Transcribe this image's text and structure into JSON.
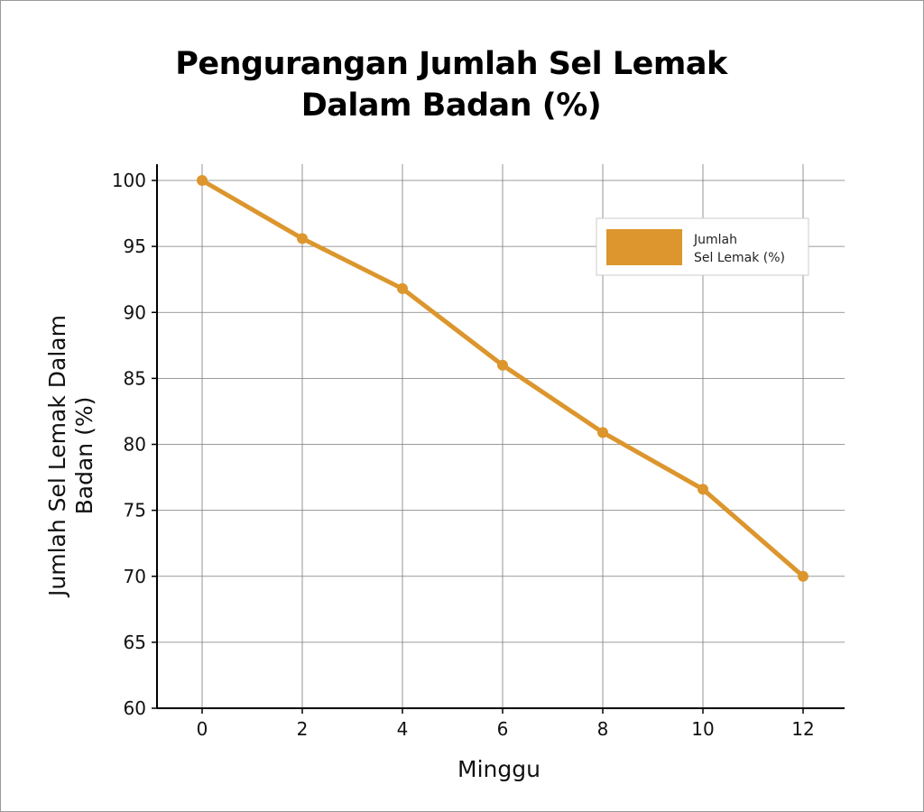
{
  "chart_data": {
    "type": "line",
    "title_lines": [
      "Pengurangan Jumlah Sel Lemak",
      "Dalam Badan (%)"
    ],
    "xlabel": "Minggu",
    "ylabel_lines": [
      "Jumlah Sel Lemak Dalam",
      "Badan (%)"
    ],
    "x": [
      0,
      2,
      4,
      6,
      8,
      10,
      12
    ],
    "x_ticks": [
      "0",
      "2",
      "4",
      "6",
      "8",
      "10",
      "12"
    ],
    "y_ticks": [
      "60",
      "65",
      "70",
      "75",
      "80",
      "85",
      "90",
      "95",
      "100"
    ],
    "ylim": [
      60,
      100
    ],
    "xlim": [
      -1,
      12.4
    ],
    "grid": true,
    "series": [
      {
        "name_lines": [
          "Jumlah",
          "Sel Lemak (%)"
        ],
        "color": "#DC962D",
        "values": [
          100,
          95.6,
          91.8,
          86,
          80.9,
          76.6,
          70
        ]
      }
    ],
    "legend_position": "top-right"
  }
}
